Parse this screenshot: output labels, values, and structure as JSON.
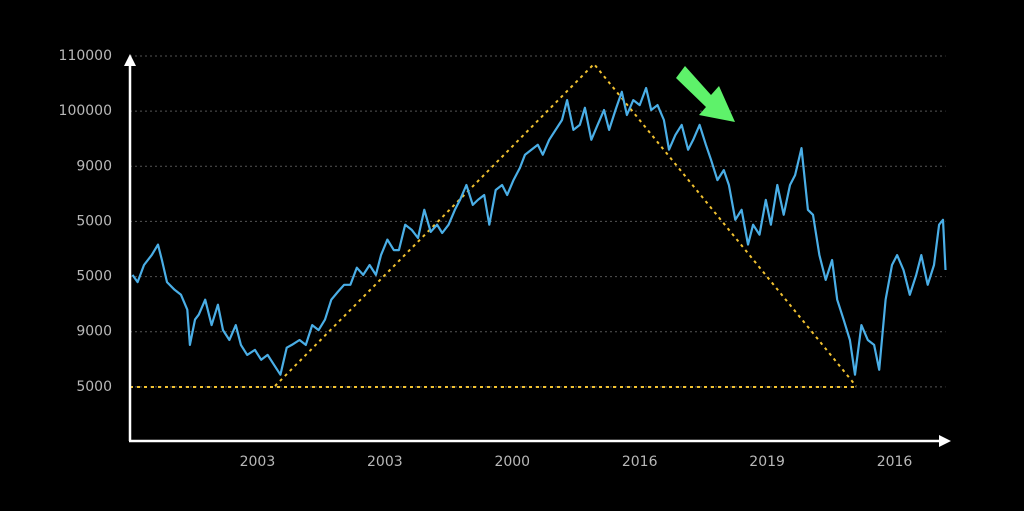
{
  "chart_data": {
    "type": "line",
    "x": [
      -0.98,
      -0.94,
      -0.89,
      -0.83,
      -0.78,
      -0.75,
      -0.71,
      -0.65,
      -0.6,
      -0.55,
      -0.53,
      -0.49,
      -0.46,
      -0.41,
      -0.36,
      -0.31,
      -0.27,
      -0.22,
      -0.17,
      -0.13,
      -0.08,
      -0.02,
      0.03,
      0.08,
      0.13,
      0.18,
      0.23,
      0.27,
      0.33,
      0.38,
      0.43,
      0.48,
      0.53,
      0.58,
      0.63,
      0.68,
      0.73,
      0.78,
      0.83,
      0.88,
      0.93,
      0.97,
      1.02,
      1.07,
      1.11,
      1.16,
      1.21,
      1.26,
      1.31,
      1.36,
      1.41,
      1.45,
      1.5,
      1.55,
      1.59,
      1.64,
      1.69,
      1.73,
      1.78,
      1.82,
      1.87,
      1.92,
      1.96,
      2.01,
      2.06,
      2.1,
      2.15,
      2.2,
      2.24,
      2.29,
      2.34,
      2.39,
      2.43,
      2.48,
      2.53,
      2.57,
      2.62,
      2.67,
      2.72,
      2.76,
      2.81,
      2.86,
      2.9,
      2.95,
      3.0,
      3.05,
      3.09,
      3.14,
      3.19,
      3.23,
      3.28,
      3.33,
      3.38,
      3.42,
      3.47,
      3.52,
      3.56,
      3.61,
      3.66,
      3.7,
      3.75,
      3.8,
      3.85,
      3.89,
      3.94,
      3.99,
      4.03,
      4.08,
      4.13,
      4.18,
      4.22,
      4.27,
      4.32,
      4.36,
      4.41,
      4.46,
      4.51,
      4.55,
      4.6,
      4.65,
      4.69,
      4.74,
      4.79,
      4.84,
      4.88,
      4.93,
      4.98,
      5.02,
      5.07,
      5.12,
      5.17,
      5.21,
      5.26,
      5.31,
      5.35,
      5.38,
      5.4
    ],
    "series": [
      {
        "color": "#4aaee6",
        "values": [
          2.03,
          1.9,
          2.21,
          2.39,
          2.58,
          2.3,
          1.9,
          1.76,
          1.67,
          1.4,
          0.76,
          1.22,
          1.31,
          1.58,
          1.12,
          1.49,
          1.03,
          0.85,
          1.12,
          0.76,
          0.58,
          0.67,
          0.49,
          0.58,
          0.4,
          0.22,
          0.71,
          0.76,
          0.85,
          0.76,
          1.12,
          1.03,
          1.22,
          1.58,
          1.72,
          1.85,
          1.85,
          2.16,
          2.03,
          2.21,
          2.03,
          2.39,
          2.67,
          2.48,
          2.48,
          2.94,
          2.85,
          2.7,
          3.21,
          2.81,
          2.94,
          2.79,
          2.94,
          3.21,
          3.39,
          3.66,
          3.3,
          3.39,
          3.48,
          2.94,
          3.57,
          3.66,
          3.48,
          3.75,
          3.97,
          4.21,
          4.3,
          4.39,
          4.21,
          4.48,
          4.66,
          4.84,
          5.2,
          4.66,
          4.75,
          5.06,
          4.48,
          4.75,
          5.02,
          4.66,
          5.02,
          5.35,
          4.93,
          5.2,
          5.11,
          5.42,
          5.02,
          5.11,
          4.84,
          4.3,
          4.57,
          4.75,
          4.3,
          4.48,
          4.75,
          4.39,
          4.12,
          3.75,
          3.93,
          3.66,
          3.03,
          3.21,
          2.58,
          2.94,
          2.76,
          3.39,
          2.94,
          3.66,
          3.12,
          3.66,
          3.84,
          4.33,
          3.21,
          3.12,
          2.39,
          1.94,
          2.3,
          1.58,
          1.22,
          0.85,
          0.22,
          1.12,
          0.85,
          0.76,
          0.31,
          1.58,
          2.21,
          2.39,
          2.12,
          1.67,
          2.03,
          2.39,
          1.85,
          2.21,
          2.94,
          3.03,
          2.12
        ]
      }
    ],
    "xlim": [
      -1,
      5.4
    ],
    "ylim": [
      -1,
      6
    ],
    "xticks": [
      {
        "value": 0,
        "label": "2003"
      },
      {
        "value": 1,
        "label": "2003"
      },
      {
        "value": 2,
        "label": "2000"
      },
      {
        "value": 3,
        "label": "2016"
      },
      {
        "value": 4,
        "label": "2019"
      },
      {
        "value": 5,
        "label": "2016"
      }
    ],
    "yticks": [
      {
        "value": 0,
        "label": "5000"
      },
      {
        "value": 1,
        "label": "9000"
      },
      {
        "value": 2,
        "label": "5000"
      },
      {
        "value": 3,
        "label": "5000"
      },
      {
        "value": 4,
        "label": "9000"
      },
      {
        "value": 5,
        "label": "100000"
      },
      {
        "value": 6,
        "label": "110000"
      }
    ],
    "grid": true
  }
}
